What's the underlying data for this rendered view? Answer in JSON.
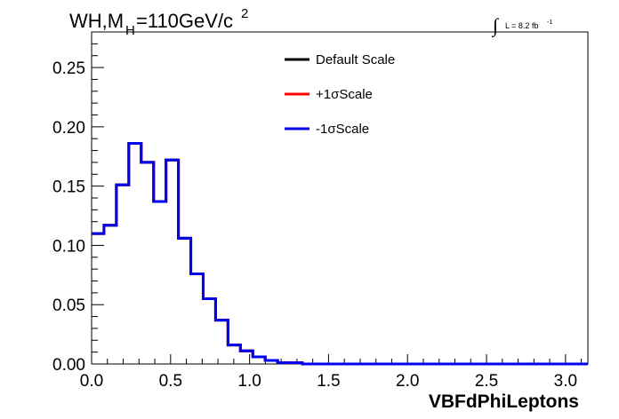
{
  "chart_data": {
    "type": "step",
    "title_main": "WH,M",
    "title_sub": "H",
    "title_rest": "=110GeV/c",
    "title_sup": "2",
    "lumi_integral": "∫",
    "lumi_text": "L = 8.2 fb",
    "lumi_sup": "-1",
    "xlabel": "VBFdPhiLeptons",
    "xlim": [
      0,
      3.1416
    ],
    "ylim": [
      0,
      0.28
    ],
    "xticks": [
      "0.0",
      "0.5",
      "1.0",
      "1.5",
      "2.0",
      "2.5",
      "3.0"
    ],
    "xtick_values": [
      0,
      0.5,
      1.0,
      1.5,
      2.0,
      2.5,
      3.0
    ],
    "yticks": [
      "0.00",
      "0.05",
      "0.10",
      "0.15",
      "0.20",
      "0.25"
    ],
    "ytick_values": [
      0,
      0.05,
      0.1,
      0.15,
      0.2,
      0.25
    ],
    "bin_width": 0.0785,
    "series": [
      {
        "name": "Default Scale",
        "color": "#000000",
        "values": [
          0.11,
          0.117,
          0.151,
          0.186,
          0.17,
          0.137,
          0.172,
          0.106,
          0.076,
          0.055,
          0.037,
          0.016,
          0.011,
          0.006,
          0.003,
          0.001,
          0.001,
          0.0,
          0,
          0,
          0,
          0,
          0,
          0,
          0,
          0,
          0,
          0,
          0,
          0,
          0,
          0,
          0,
          0,
          0,
          0,
          0,
          0,
          0,
          0
        ]
      },
      {
        "name": "+1σScale",
        "color": "#ff0000",
        "values": [
          0.11,
          0.117,
          0.151,
          0.186,
          0.17,
          0.137,
          0.172,
          0.106,
          0.076,
          0.055,
          0.037,
          0.016,
          0.011,
          0.006,
          0.003,
          0.001,
          0.001,
          0.0,
          0,
          0,
          0,
          0,
          0,
          0,
          0,
          0,
          0,
          0,
          0,
          0,
          0,
          0,
          0,
          0,
          0,
          0,
          0,
          0,
          0,
          0
        ]
      },
      {
        "name": "-1σScale",
        "color": "#0000ee",
        "values": [
          0.11,
          0.117,
          0.151,
          0.186,
          0.17,
          0.137,
          0.172,
          0.106,
          0.076,
          0.055,
          0.037,
          0.016,
          0.011,
          0.006,
          0.003,
          0.001,
          0.001,
          0.0,
          0,
          0,
          0,
          0,
          0,
          0,
          0,
          0,
          0,
          0,
          0,
          0,
          0,
          0,
          0,
          0,
          0,
          0,
          0,
          0,
          0,
          0
        ]
      }
    ],
    "legend_position": "top-center"
  }
}
